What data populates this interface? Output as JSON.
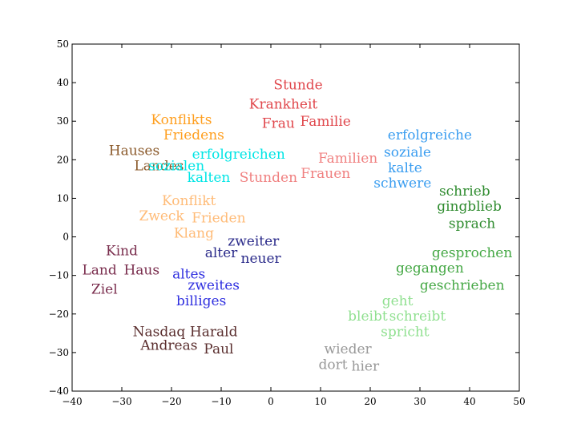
{
  "chart_data": {
    "type": "scatter",
    "title": "",
    "xlabel": "",
    "ylabel": "",
    "xlim": [
      -40,
      50
    ],
    "ylim": [
      -40,
      50
    ],
    "grid": false,
    "xticks": [
      {
        "value": -40,
        "label": "−40"
      },
      {
        "value": -30,
        "label": "−30"
      },
      {
        "value": -20,
        "label": "−20"
      },
      {
        "value": -10,
        "label": "−10"
      },
      {
        "value": 0,
        "label": "0"
      },
      {
        "value": 10,
        "label": "10"
      },
      {
        "value": 20,
        "label": "20"
      },
      {
        "value": 30,
        "label": "30"
      },
      {
        "value": 40,
        "label": "40"
      },
      {
        "value": 50,
        "label": "50"
      }
    ],
    "yticks": [
      {
        "value": -40,
        "label": "−40"
      },
      {
        "value": -30,
        "label": "−30"
      },
      {
        "value": -20,
        "label": "−20"
      },
      {
        "value": -10,
        "label": "−10"
      },
      {
        "value": 0,
        "label": "0"
      },
      {
        "value": 10,
        "label": "10"
      },
      {
        "value": 20,
        "label": "20"
      },
      {
        "value": 30,
        "label": "30"
      },
      {
        "value": 40,
        "label": "40"
      },
      {
        "value": 50,
        "label": "50"
      }
    ],
    "series": [
      {
        "color": "#e0474c",
        "points": [
          {
            "label": "Stunde",
            "x": 5.5,
            "y": 39.5
          },
          {
            "label": "Krankheit",
            "x": 2.5,
            "y": 34.5
          },
          {
            "label": "Frau",
            "x": 1.5,
            "y": 29.5
          },
          {
            "label": "Familie",
            "x": 11,
            "y": 30
          }
        ]
      },
      {
        "color": "#f08080",
        "points": [
          {
            "label": "Familien",
            "x": 15.5,
            "y": 20.5
          },
          {
            "label": "Frauen",
            "x": 11,
            "y": 16.5
          },
          {
            "label": "Stunden",
            "x": -0.5,
            "y": 15.5
          }
        ]
      },
      {
        "color": "#ff9f1f",
        "points": [
          {
            "label": "Konflikts",
            "x": -18,
            "y": 30.5
          },
          {
            "label": "Friedens",
            "x": -15.5,
            "y": 26.5
          }
        ]
      },
      {
        "color": "#8b5a2b",
        "points": [
          {
            "label": "Hauses",
            "x": -27.5,
            "y": 22.5
          },
          {
            "label": "Landes",
            "x": -22.5,
            "y": 18.5
          }
        ]
      },
      {
        "color": "#00e5e5",
        "points": [
          {
            "label": "erfolgreichen",
            "x": -6.5,
            "y": 21.5
          },
          {
            "label": "sozialen",
            "x": -19,
            "y": 18.5
          },
          {
            "label": "kalten",
            "x": -12.5,
            "y": 15.5
          }
        ]
      },
      {
        "color": "#3a9df0",
        "points": [
          {
            "label": "erfolgreiche",
            "x": 32,
            "y": 26.5
          },
          {
            "label": "soziale",
            "x": 27.5,
            "y": 22
          },
          {
            "label": "kalte",
            "x": 27,
            "y": 18
          },
          {
            "label": "schwere",
            "x": 26.5,
            "y": 14
          }
        ]
      },
      {
        "color": "#2e8b2e",
        "points": [
          {
            "label": "schrieb",
            "x": 39,
            "y": 12
          },
          {
            "label": "ging",
            "x": 36.5,
            "y": 8
          },
          {
            "label": "blieb",
            "x": 43,
            "y": 8
          },
          {
            "label": "sprach",
            "x": 40.5,
            "y": 3.5
          }
        ]
      },
      {
        "color": "#45a845",
        "points": [
          {
            "label": "gesprochen",
            "x": 40.5,
            "y": -4
          },
          {
            "label": "gegangen",
            "x": 32,
            "y": -8
          },
          {
            "label": "geschrieben",
            "x": 38.5,
            "y": -12.5
          }
        ]
      },
      {
        "color": "#90e090",
        "points": [
          {
            "label": "geht",
            "x": 25.5,
            "y": -16.5
          },
          {
            "label": "bleibt",
            "x": 19.5,
            "y": -20.5
          },
          {
            "label": "schreibt",
            "x": 29.5,
            "y": -20.5
          },
          {
            "label": "spricht",
            "x": 27,
            "y": -24.5
          }
        ]
      },
      {
        "color": "#999999",
        "points": [
          {
            "label": "wieder",
            "x": 15.5,
            "y": -29
          },
          {
            "label": "dort",
            "x": 12.5,
            "y": -33
          },
          {
            "label": "hier",
            "x": 19,
            "y": -33.5
          }
        ]
      },
      {
        "color": "#ffbb77",
        "points": [
          {
            "label": "Konflikt",
            "x": -16.5,
            "y": 9.5
          },
          {
            "label": "Zweck",
            "x": -22,
            "y": 5.5
          },
          {
            "label": "Frieden",
            "x": -10.5,
            "y": 5
          },
          {
            "label": "Klang",
            "x": -15.5,
            "y": 1
          }
        ]
      },
      {
        "color": "#2a2a8a",
        "points": [
          {
            "label": "zweiter",
            "x": -3.5,
            "y": -1
          },
          {
            "label": "alter",
            "x": -10,
            "y": -4
          },
          {
            "label": "neuer",
            "x": -2,
            "y": -5.5
          }
        ]
      },
      {
        "color": "#3030e0",
        "points": [
          {
            "label": "altes",
            "x": -16.5,
            "y": -9.5
          },
          {
            "label": "zweites",
            "x": -11.5,
            "y": -12.5
          },
          {
            "label": "billiges",
            "x": -14,
            "y": -16.5
          }
        ]
      },
      {
        "color": "#7a2e4e",
        "points": [
          {
            "label": "Kind",
            "x": -30,
            "y": -3.5
          },
          {
            "label": "Land",
            "x": -34.5,
            "y": -8.5
          },
          {
            "label": "Haus",
            "x": -26,
            "y": -8.5
          },
          {
            "label": "Ziel",
            "x": -33.5,
            "y": -13.5
          }
        ]
      },
      {
        "color": "#5a2e2e",
        "points": [
          {
            "label": "Nasdaq",
            "x": -22.5,
            "y": -24.5
          },
          {
            "label": "Harald",
            "x": -11.5,
            "y": -24.5
          },
          {
            "label": "Andreas",
            "x": -20.5,
            "y": -28
          },
          {
            "label": "Paul",
            "x": -10.5,
            "y": -29
          }
        ]
      }
    ]
  }
}
